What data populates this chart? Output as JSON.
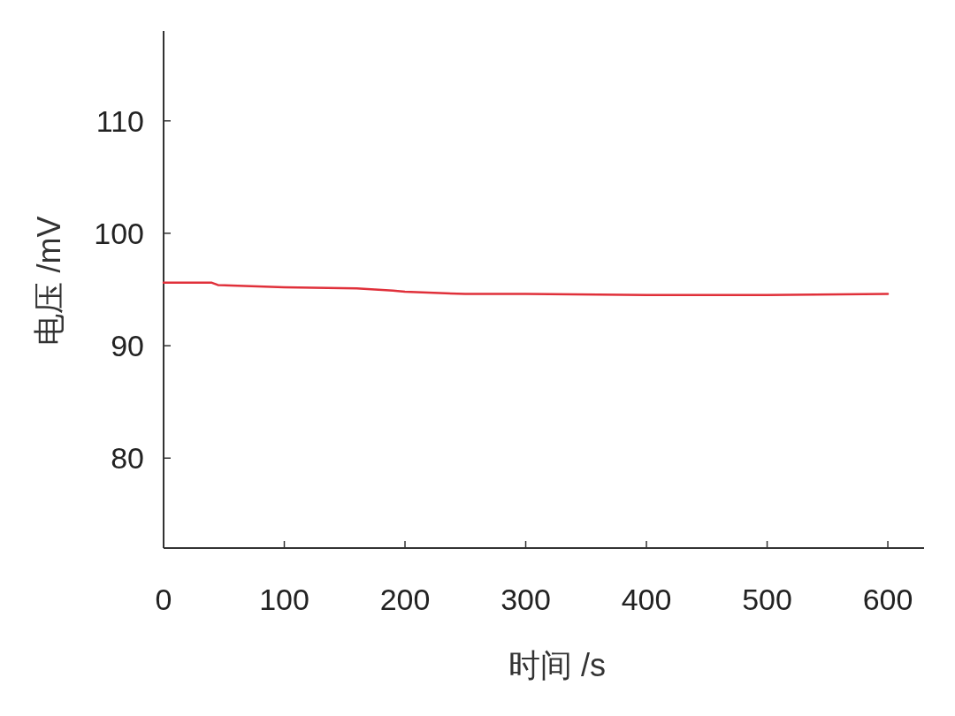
{
  "chart_data": {
    "type": "line",
    "xlabel": "时间 /s",
    "ylabel": "电压 /mV",
    "xlim": [
      0,
      630
    ],
    "ylim": [
      72,
      118
    ],
    "xticks": [
      0,
      100,
      200,
      300,
      400,
      500,
      600
    ],
    "yticks": [
      80,
      90,
      100,
      110
    ],
    "grid": false,
    "series": [
      {
        "color": "#e0303a",
        "x": [
          0,
          40,
          45,
          100,
          160,
          190,
          200,
          250,
          300,
          400,
          500,
          600
        ],
        "values": [
          95.6,
          95.6,
          95.4,
          95.2,
          95.1,
          94.9,
          94.8,
          94.6,
          94.6,
          94.5,
          94.5,
          94.6
        ]
      }
    ]
  }
}
